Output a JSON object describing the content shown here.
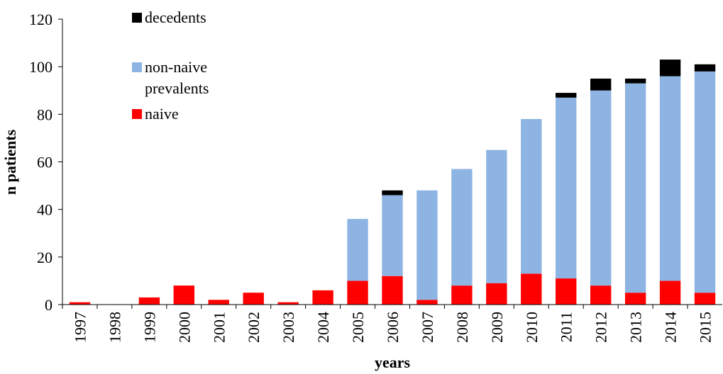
{
  "chart_data": {
    "type": "stacked_bar",
    "x_label": "years",
    "y_label": "n patients",
    "categories": [
      "1997",
      "1998",
      "1999",
      "2000",
      "2001",
      "2002",
      "2003",
      "2004",
      "2005",
      "2006",
      "2007",
      "2008",
      "2009",
      "2010",
      "2011",
      "2012",
      "2013",
      "2014",
      "2015"
    ],
    "series": [
      {
        "name": "naive",
        "color": "#ff0000",
        "values": [
          1,
          0,
          3,
          8,
          2,
          5,
          1,
          6,
          10,
          12,
          2,
          8,
          9,
          13,
          11,
          8,
          5,
          10,
          5
        ]
      },
      {
        "name": "non-naive prevalents",
        "color": "#8db4e2",
        "values": [
          0,
          0,
          0,
          0,
          0,
          0,
          0,
          0,
          26,
          34,
          46,
          49,
          56,
          65,
          76,
          82,
          88,
          86,
          93
        ]
      },
      {
        "name": "decedents",
        "color": "#000000",
        "values": [
          0,
          0,
          0,
          0,
          0,
          0,
          0,
          0,
          0,
          2,
          0,
          0,
          0,
          0,
          2,
          5,
          2,
          7,
          3
        ]
      }
    ],
    "ylim": [
      0,
      120
    ],
    "yticks": [
      0,
      20,
      40,
      60,
      80,
      100,
      120
    ],
    "grid": false,
    "legend": "top-left"
  }
}
